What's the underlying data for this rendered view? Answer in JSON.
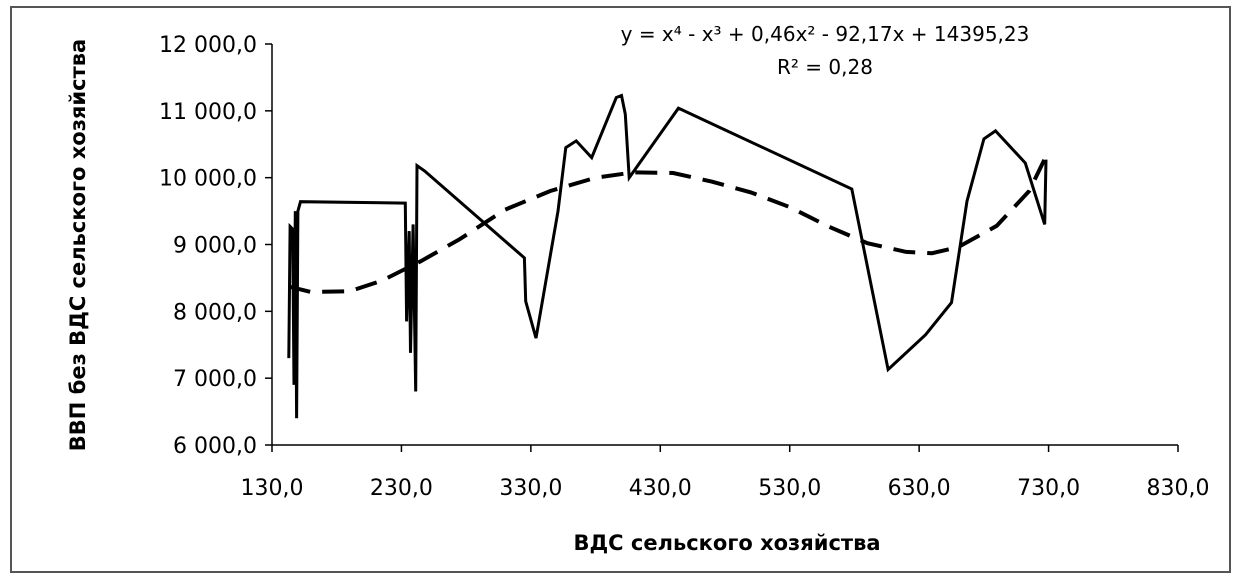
{
  "chart_data": {
    "type": "line",
    "xlabel": "ВДС сельского хозяйства",
    "ylabel": "ВВП без ВДС сельского хозяйства",
    "xlim": [
      130,
      830
    ],
    "ylim": [
      6000,
      12000
    ],
    "x_ticks": [
      130,
      230,
      330,
      430,
      530,
      630,
      730,
      830
    ],
    "y_ticks": [
      6000,
      7000,
      8000,
      9000,
      10000,
      11000,
      12000
    ],
    "x_tick_labels": [
      "130,0",
      "230,0",
      "330,0",
      "430,0",
      "530,0",
      "630,0",
      "730,0",
      "830,0"
    ],
    "y_tick_labels": [
      "6 000,0",
      "7 000,0",
      "8 000,0",
      "9 000,0",
      "10 000,0",
      "11 000,0",
      "12 000,0"
    ],
    "equation": "y = x⁴ - x³ + 0,46x² - 92,17x + 14395,23",
    "r_squared": "R² = 0,28",
    "grid": false,
    "series": [
      {
        "style": "solid",
        "points": [
          [
            143,
            7300
          ],
          [
            144,
            9270
          ],
          [
            146,
            9230
          ],
          [
            147,
            6900
          ],
          [
            148,
            9500
          ],
          [
            149,
            6400
          ],
          [
            150,
            9500
          ],
          [
            152,
            9640
          ],
          [
            233,
            9620
          ],
          [
            234,
            7850
          ],
          [
            236,
            9200
          ],
          [
            237,
            7380
          ],
          [
            239,
            9300
          ],
          [
            241,
            6800
          ],
          [
            242,
            10180
          ],
          [
            248,
            10100
          ],
          [
            325,
            8800
          ],
          [
            326,
            8150
          ],
          [
            334,
            7600
          ],
          [
            351,
            9500
          ],
          [
            357,
            10450
          ],
          [
            365,
            10550
          ],
          [
            377,
            10300
          ],
          [
            396,
            11200
          ],
          [
            400,
            11230
          ],
          [
            403,
            10950
          ],
          [
            406,
            10000
          ],
          [
            444,
            11040
          ],
          [
            578,
            9830
          ],
          [
            606,
            7130
          ],
          [
            635,
            7650
          ],
          [
            655,
            8130
          ],
          [
            667,
            9650
          ],
          [
            680,
            10580
          ],
          [
            689,
            10700
          ],
          [
            712,
            10220
          ],
          [
            727,
            9300
          ],
          [
            728,
            10270
          ]
        ]
      },
      {
        "style": "dashed",
        "points": [
          [
            143,
            8370
          ],
          [
            160,
            8290
          ],
          [
            190,
            8300
          ],
          [
            215,
            8460
          ],
          [
            245,
            8750
          ],
          [
            275,
            9080
          ],
          [
            310,
            9520
          ],
          [
            345,
            9800
          ],
          [
            380,
            10000
          ],
          [
            410,
            10080
          ],
          [
            440,
            10070
          ],
          [
            470,
            9940
          ],
          [
            500,
            9780
          ],
          [
            530,
            9560
          ],
          [
            560,
            9270
          ],
          [
            590,
            9020
          ],
          [
            620,
            8890
          ],
          [
            640,
            8870
          ],
          [
            660,
            8960
          ],
          [
            690,
            9280
          ],
          [
            715,
            9800
          ],
          [
            730,
            10400
          ]
        ]
      }
    ]
  }
}
